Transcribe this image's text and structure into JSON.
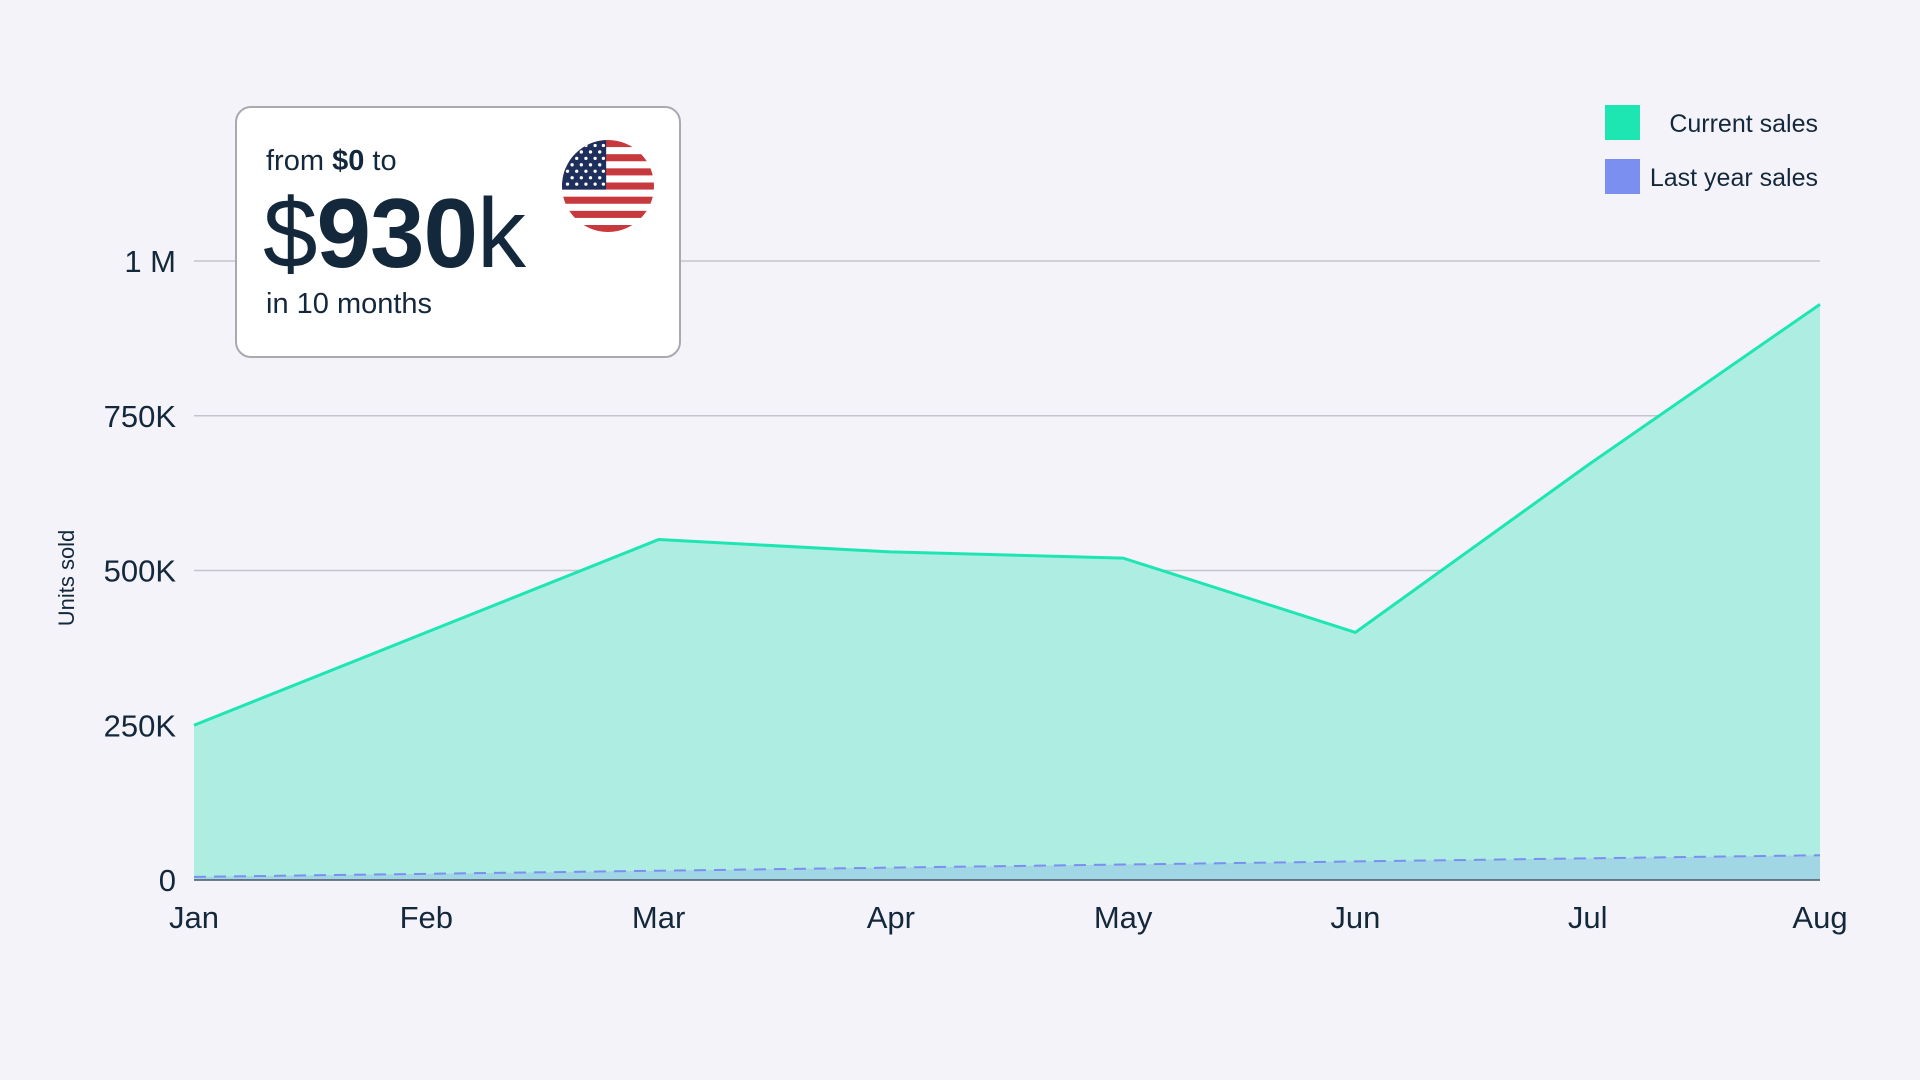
{
  "card": {
    "from_prefix": "from ",
    "from_value": "$0",
    "from_suffix": " to",
    "amount_currency": "$",
    "amount_number": "930",
    "amount_unit": "k",
    "subtitle": "in 10 months",
    "flag_icon": "us-flag-icon"
  },
  "colors": {
    "current": "#1ee6b3",
    "current_fill": "#aeeee2",
    "last_year": "#7b8ff0",
    "grid": "#c4c4cc",
    "text": "#14283c",
    "background": "#f4f3f9"
  },
  "chart_data": {
    "type": "area",
    "categories": [
      "Jan",
      "Feb",
      "Mar",
      "Apr",
      "May",
      "Jun",
      "Jul",
      "Aug"
    ],
    "ylabel": "Units sold",
    "ylim": [
      0,
      1000000
    ],
    "yticks": [
      0,
      250000,
      500000,
      750000,
      1000000
    ],
    "ytick_labels": [
      "0",
      "250K",
      "500K",
      "750K",
      "1 M"
    ],
    "grid": true,
    "legend_position": "top-right",
    "series": [
      {
        "name": "Current sales",
        "values": [
          250000,
          400000,
          550000,
          530000,
          520000,
          400000,
          670000,
          930000
        ],
        "style": "solid-area"
      },
      {
        "name": "Last year sales",
        "values": [
          5000,
          10000,
          15000,
          20000,
          25000,
          30000,
          35000,
          40000
        ],
        "style": "dashed-area"
      }
    ]
  }
}
